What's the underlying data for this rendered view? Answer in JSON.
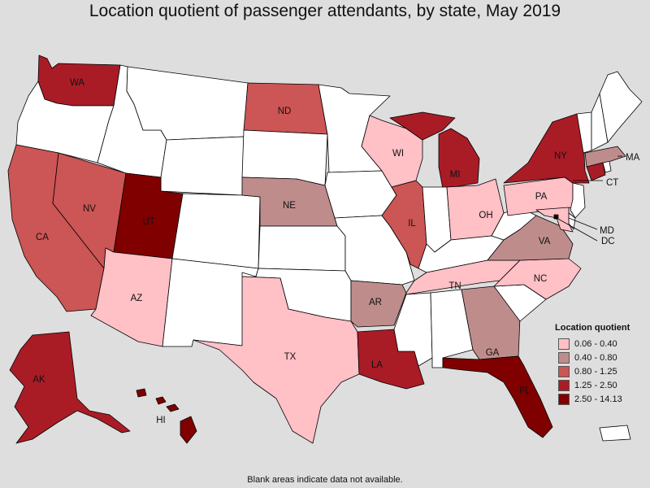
{
  "title": "Location quotient of passenger attendants, by state, May 2019",
  "footnote": "Blank areas indicate data not available.",
  "legend": {
    "title": "Location quotient",
    "items": [
      {
        "label": "0.06 - 0.40",
        "color": "#ffc0c6"
      },
      {
        "label": "0.40 - 0.80",
        "color": "#bf8c8c"
      },
      {
        "label": "0.80 - 1.25",
        "color": "#cc5555"
      },
      {
        "label": "1.25 - 2.50",
        "color": "#a91c26"
      },
      {
        "label": "2.50 - 14.13",
        "color": "#800000"
      }
    ]
  },
  "states": {
    "WA": {
      "label": "WA",
      "class": 3
    },
    "OR": {
      "label": "",
      "class": null
    },
    "CA": {
      "label": "CA",
      "class": 2
    },
    "NV": {
      "label": "NV",
      "class": 2
    },
    "ID": {
      "label": "",
      "class": null
    },
    "MT": {
      "label": "",
      "class": null
    },
    "WY": {
      "label": "",
      "class": null
    },
    "UT": {
      "label": "UT",
      "class": 4
    },
    "AZ": {
      "label": "AZ",
      "class": 0
    },
    "CO": {
      "label": "",
      "class": null
    },
    "NM": {
      "label": "",
      "class": null
    },
    "ND": {
      "label": "ND",
      "class": 2
    },
    "SD": {
      "label": "",
      "class": null
    },
    "NE": {
      "label": "NE",
      "class": 1
    },
    "KS": {
      "label": "",
      "class": null
    },
    "OK": {
      "label": "",
      "class": null
    },
    "TX": {
      "label": "TX",
      "class": 0
    },
    "MN": {
      "label": "",
      "class": null
    },
    "IA": {
      "label": "",
      "class": null
    },
    "MO": {
      "label": "",
      "class": null
    },
    "AR": {
      "label": "AR",
      "class": 1
    },
    "LA": {
      "label": "LA",
      "class": 3
    },
    "WI": {
      "label": "WI",
      "class": 0
    },
    "IL": {
      "label": "IL",
      "class": 2
    },
    "MI": {
      "label": "MI",
      "class": 3
    },
    "IN": {
      "label": "",
      "class": null
    },
    "OH": {
      "label": "OH",
      "class": 0
    },
    "KY": {
      "label": "",
      "class": null
    },
    "TN": {
      "label": "TN",
      "class": 0
    },
    "MS": {
      "label": "",
      "class": null
    },
    "AL": {
      "label": "",
      "class": null
    },
    "GA": {
      "label": "GA",
      "class": 1
    },
    "FL": {
      "label": "FL",
      "class": 4
    },
    "SC": {
      "label": "",
      "class": null
    },
    "NC": {
      "label": "NC",
      "class": 0
    },
    "VA": {
      "label": "VA",
      "class": 1
    },
    "WV": {
      "label": "",
      "class": null
    },
    "PA": {
      "label": "PA",
      "class": 0
    },
    "NY": {
      "label": "NY",
      "class": 3
    },
    "NJ": {
      "label": "",
      "class": null
    },
    "MD": {
      "label": "MD",
      "class": 0
    },
    "DE": {
      "label": "",
      "class": null
    },
    "DC": {
      "label": "DC",
      "class": 4
    },
    "CT": {
      "label": "CT",
      "class": 3
    },
    "RI": {
      "label": "",
      "class": null
    },
    "MA": {
      "label": "MA",
      "class": 1
    },
    "VT": {
      "label": "",
      "class": null
    },
    "NH": {
      "label": "",
      "class": null
    },
    "ME": {
      "label": "",
      "class": null
    },
    "AK": {
      "label": "AK",
      "class": 3
    },
    "HI": {
      "label": "HI",
      "class": 4
    },
    "PR": {
      "label": "",
      "class": null
    }
  },
  "no_data_color": "#ffffff"
}
